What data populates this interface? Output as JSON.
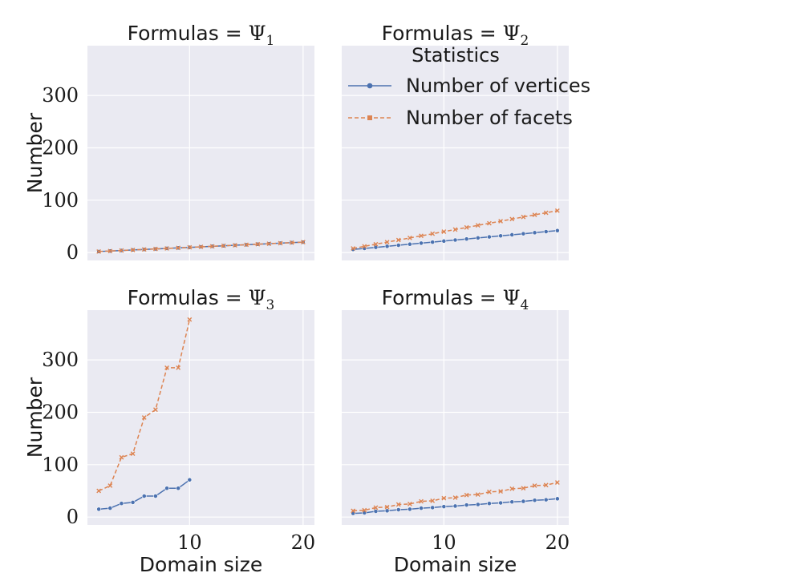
{
  "figure": {
    "legend_title": "Statistics",
    "legend_placement": "top-right of panel 2",
    "xlabel": "Domain size",
    "ylabel": "Number",
    "colors": {
      "vertices": "#4c72b0",
      "facets": "#dd8452",
      "panel_bg": "#eaeaf2",
      "grid": "#ffffff"
    }
  },
  "chart_data": [
    {
      "type": "line",
      "title": "Formulas = Ψ1",
      "title_prefix": "Formulas = ",
      "title_symbol": "Ψ",
      "title_sub": "1",
      "xlabel": "",
      "ylabel": "Number",
      "xlim": [
        1,
        21
      ],
      "ylim": [
        -15,
        395
      ],
      "xticks": [
        10,
        20
      ],
      "yticks": [
        0,
        100,
        200,
        300
      ],
      "grid": true,
      "series": [
        {
          "name": "Number of vertices",
          "marker": "circle",
          "line": "solid",
          "x": [
            2,
            3,
            4,
            5,
            6,
            7,
            8,
            9,
            10,
            11,
            12,
            13,
            14,
            15,
            16,
            17,
            18,
            19,
            20
          ],
          "y": [
            2,
            3,
            4,
            5,
            6,
            7,
            8,
            9,
            10,
            11,
            12,
            13,
            14,
            15,
            16,
            17,
            18,
            19,
            20
          ]
        },
        {
          "name": "Number of facets",
          "marker": "x",
          "line": "dashed",
          "x": [
            2,
            3,
            4,
            5,
            6,
            7,
            8,
            9,
            10,
            11,
            12,
            13,
            14,
            15,
            16,
            17,
            18,
            19,
            20
          ],
          "y": [
            2,
            3,
            4,
            5,
            6,
            7,
            8,
            9,
            10,
            11,
            12,
            13,
            14,
            15,
            16,
            17,
            18,
            19,
            20
          ]
        }
      ]
    },
    {
      "type": "line",
      "title": "Formulas = Ψ2",
      "title_prefix": "Formulas = ",
      "title_symbol": "Ψ",
      "title_sub": "2",
      "xlabel": "",
      "ylabel": "",
      "xlim": [
        1,
        21
      ],
      "ylim": [
        -15,
        395
      ],
      "xticks": [
        10,
        20
      ],
      "yticks": [
        0,
        100,
        200,
        300
      ],
      "grid": true,
      "series": [
        {
          "name": "Number of vertices",
          "marker": "circle",
          "line": "solid",
          "x": [
            2,
            3,
            4,
            5,
            6,
            7,
            8,
            9,
            10,
            11,
            12,
            13,
            14,
            15,
            16,
            17,
            18,
            19,
            20
          ],
          "y": [
            6,
            8,
            10,
            12,
            14,
            16,
            18,
            20,
            22,
            24,
            26,
            28,
            30,
            32,
            34,
            36,
            38,
            40,
            42
          ]
        },
        {
          "name": "Number of facets",
          "marker": "x",
          "line": "dashed",
          "x": [
            2,
            3,
            4,
            5,
            6,
            7,
            8,
            9,
            10,
            11,
            12,
            13,
            14,
            15,
            16,
            17,
            18,
            19,
            20
          ],
          "y": [
            8,
            12,
            16,
            20,
            24,
            28,
            32,
            36,
            40,
            44,
            48,
            52,
            56,
            60,
            64,
            68,
            72,
            76,
            80
          ]
        }
      ]
    },
    {
      "type": "line",
      "title": "Formulas = Ψ3",
      "title_prefix": "Formulas = ",
      "title_symbol": "Ψ",
      "title_sub": "3",
      "xlabel": "Domain size",
      "ylabel": "Number",
      "xlim": [
        1,
        21
      ],
      "ylim": [
        -15,
        395
      ],
      "xticks": [
        10,
        20
      ],
      "yticks": [
        0,
        100,
        200,
        300
      ],
      "grid": true,
      "series": [
        {
          "name": "Number of vertices",
          "marker": "circle",
          "line": "solid",
          "x": [
            2,
            3,
            4,
            5,
            6,
            7,
            8,
            9,
            10
          ],
          "y": [
            15,
            17,
            26,
            28,
            40,
            40,
            55,
            55,
            71
          ]
        },
        {
          "name": "Number of facets",
          "marker": "x",
          "line": "dashed",
          "x": [
            2,
            3,
            4,
            5,
            6,
            7,
            8,
            9,
            10
          ],
          "y": [
            50,
            60,
            114,
            121,
            190,
            205,
            285,
            285,
            377
          ]
        }
      ]
    },
    {
      "type": "line",
      "title": "Formulas = Ψ4",
      "title_prefix": "Formulas = ",
      "title_symbol": "Ψ",
      "title_sub": "4",
      "xlabel": "Domain size",
      "ylabel": "",
      "xlim": [
        1,
        21
      ],
      "ylim": [
        -15,
        395
      ],
      "xticks": [
        10,
        20
      ],
      "yticks": [
        0,
        100,
        200,
        300
      ],
      "grid": true,
      "series": [
        {
          "name": "Number of vertices",
          "marker": "circle",
          "line": "solid",
          "x": [
            2,
            3,
            4,
            5,
            6,
            7,
            8,
            9,
            10,
            11,
            12,
            13,
            14,
            15,
            16,
            17,
            18,
            19,
            20
          ],
          "y": [
            7,
            8,
            11,
            12,
            14,
            15,
            17,
            18,
            20,
            21,
            23,
            24,
            26,
            27,
            29,
            30,
            32,
            33,
            35
          ]
        },
        {
          "name": "Number of facets",
          "marker": "x",
          "line": "dashed",
          "x": [
            2,
            3,
            4,
            5,
            6,
            7,
            8,
            9,
            10,
            11,
            12,
            13,
            14,
            15,
            16,
            17,
            18,
            19,
            20
          ],
          "y": [
            12,
            13,
            18,
            19,
            24,
            25,
            30,
            31,
            36,
            37,
            42,
            43,
            48,
            49,
            54,
            55,
            60,
            61,
            66
          ]
        }
      ]
    }
  ]
}
